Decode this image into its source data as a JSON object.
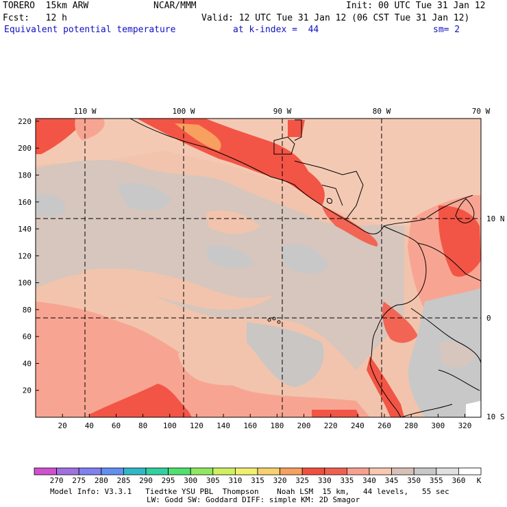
{
  "header": {
    "model": "TORERO  15km ARW",
    "center": "NCAR/MMM",
    "init": "Init: 00 UTC Tue 31 Jan 12",
    "forecast": "Fcst:   12 h",
    "valid": "Valid: 12 UTC Tue 31 Jan 12 (06 CST Tue 31 Jan 12)",
    "field": "Equivalent potential temperature",
    "level": "at k-index =  44",
    "smoothing": "sm= 2"
  },
  "map": {
    "top_lon_labels": [
      "110 W",
      "100 W",
      "90 W",
      "80 W",
      "70 W"
    ],
    "right_lat_labels": [
      "10 N",
      "0",
      "10 S"
    ],
    "x_ticks": [
      "20",
      "40",
      "60",
      "80",
      "100",
      "120",
      "140",
      "160",
      "180",
      "200",
      "220",
      "240",
      "260",
      "280",
      "300",
      "320"
    ],
    "y_ticks": [
      "220",
      "200",
      "180",
      "160",
      "140",
      "120",
      "100",
      "80",
      "60",
      "40",
      "20"
    ]
  },
  "colorbar": {
    "labels": [
      "270",
      "275",
      "280",
      "285",
      "290",
      "295",
      "300",
      "305",
      "310",
      "315",
      "320",
      "325",
      "330",
      "335",
      "340",
      "345",
      "350",
      "355",
      "360"
    ],
    "unit": "K",
    "colors": [
      "#d050d0",
      "#a070e0",
      "#8080f0",
      "#6090f0",
      "#30b8c8",
      "#30d0a0",
      "#50e070",
      "#90e860",
      "#d0f060",
      "#f0f070",
      "#f8d070",
      "#f8a060",
      "#f05040",
      "#f06050",
      "#f8a090",
      "#f8c8b0",
      "#d8c0b8",
      "#c8c8c8",
      "#e0e0e0",
      "#ffffff"
    ]
  },
  "footer": {
    "line1": "Model Info: V3.3.1   Tiedtke YSU PBL  Thompson    Noah LSM  15 km,   44 levels,   55 sec",
    "line2": "LW: Godd SW: Goddard DIFF: simple KM: 2D Smagor"
  }
}
